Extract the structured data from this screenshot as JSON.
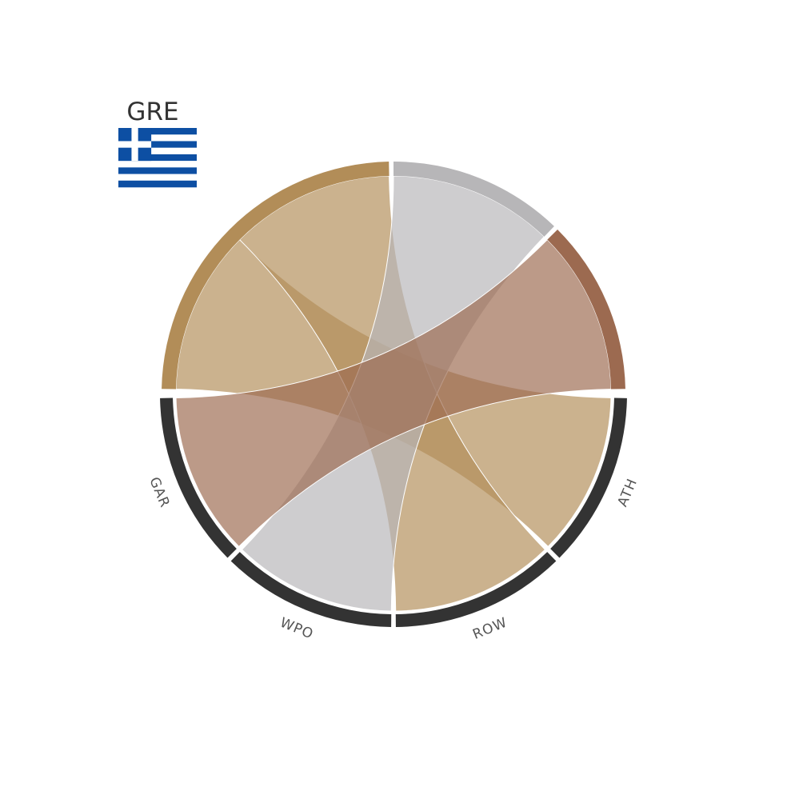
{
  "country": {
    "code": "GRE",
    "flag_icon": "greece-flag-icon",
    "flag_colors": {
      "blue": "#0d4fa3",
      "white": "#ffffff"
    }
  },
  "medal_colors": {
    "gold": "#b28d58",
    "silver": "#b7b6b8",
    "bronze": "#9c6a50"
  },
  "sport_arc_color": "#333333",
  "chart_data": {
    "type": "chord",
    "medal_groups": [
      {
        "id": "gold",
        "value": 4
      },
      {
        "id": "silver",
        "value": 2
      },
      {
        "id": "bronze",
        "value": 2
      }
    ],
    "sports": [
      {
        "label": "ATH",
        "value": 2
      },
      {
        "label": "ROW",
        "value": 2
      },
      {
        "label": "WPO",
        "value": 2
      },
      {
        "label": "GAR",
        "value": 2
      }
    ],
    "links": [
      {
        "medal": "gold",
        "sport": "ATH",
        "value": 2
      },
      {
        "medal": "gold",
        "sport": "ROW",
        "value": 2
      },
      {
        "medal": "silver",
        "sport": "WPO",
        "value": 2
      },
      {
        "medal": "bronze",
        "sport": "GAR",
        "value": 2
      }
    ]
  }
}
